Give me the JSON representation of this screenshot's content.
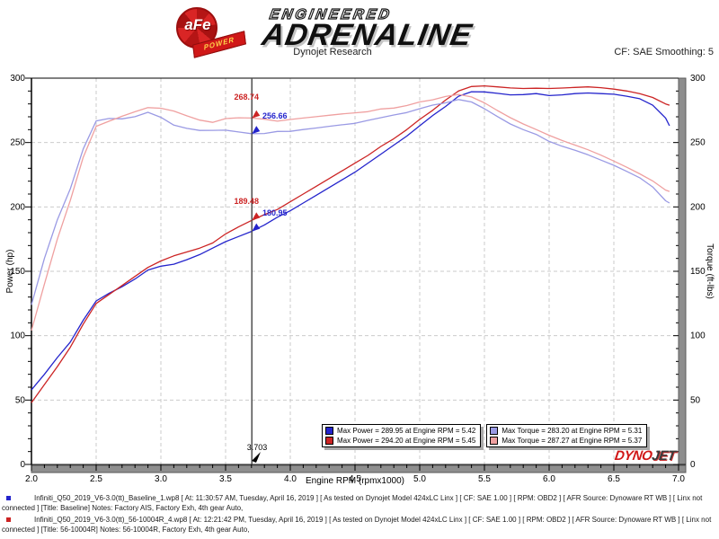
{
  "header": {
    "logo_afe": "aFe",
    "logo_power": "POWER",
    "wordmark_top": "ENGINEERED",
    "wordmark_main": "ADRENALINE",
    "subtitle": "Dynojet Research",
    "smoothing": "CF: SAE Smoothing: 5"
  },
  "chart_data": {
    "type": "line",
    "xlabel": "Engine RPM (rpmx1000)",
    "ylabel_left": "Power (hp)",
    "ylabel_right": "Torque (ft-lbs)",
    "xlim": [
      2.0,
      7.0
    ],
    "ylim": [
      0,
      300
    ],
    "x_ticks": [
      "2.0",
      "2.5",
      "3.0",
      "3.5",
      "4.0",
      "4.5",
      "5.0",
      "5.5",
      "6.0",
      "6.5",
      "7.0"
    ],
    "y_ticks": [
      "0",
      "50",
      "100",
      "150",
      "200",
      "250",
      "300"
    ],
    "grid": true,
    "x": [
      2.0,
      2.1,
      2.2,
      2.3,
      2.4,
      2.5,
      2.6,
      2.7,
      2.8,
      2.9,
      3.0,
      3.1,
      3.2,
      3.3,
      3.4,
      3.5,
      3.6,
      3.7,
      3.8,
      3.9,
      4.0,
      4.1,
      4.2,
      4.3,
      4.4,
      4.5,
      4.6,
      4.7,
      4.8,
      4.9,
      5.0,
      5.1,
      5.2,
      5.3,
      5.4,
      5.5,
      5.6,
      5.7,
      5.8,
      5.9,
      6.0,
      6.1,
      6.2,
      6.3,
      6.4,
      6.5,
      6.6,
      6.7,
      6.8,
      6.9,
      6.93
    ],
    "series": [
      {
        "name": "Baseline Power (hp)",
        "color": "#2424cc",
        "values": [
          58,
          70,
          83,
          95,
          112,
          127,
          133,
          138,
          144,
          151,
          154,
          155.5,
          159,
          163,
          168,
          173,
          177,
          181,
          186,
          192,
          197,
          203,
          209,
          215,
          221,
          227,
          234,
          241,
          248,
          255,
          263,
          271,
          278,
          286,
          289.5,
          289.3,
          288.2,
          287,
          287.2,
          288,
          286.5,
          287,
          288,
          288.5,
          288,
          287.5,
          286,
          284,
          279,
          269,
          263
        ]
      },
      {
        "name": "56-10004R Power (hp)",
        "color": "#cc2424",
        "values": [
          48,
          62,
          76,
          91,
          109,
          125,
          132,
          139,
          146,
          153,
          158,
          162,
          165,
          168,
          172,
          179,
          184.5,
          189.5,
          194,
          198,
          204,
          210,
          216,
          222,
          228,
          234,
          240,
          247,
          253,
          260,
          268,
          275,
          283,
          290,
          293.5,
          294,
          293.2,
          292.4,
          292,
          292.2,
          292,
          292.3,
          292.8,
          293.2,
          292.6,
          291.5,
          290,
          288,
          285,
          280,
          279
        ]
      },
      {
        "name": "Baseline Torque (ft-lbs)",
        "color": "#9a9ae4",
        "values": [
          124,
          160,
          190,
          214,
          245,
          266.8,
          268.7,
          268.4,
          270.1,
          273.5,
          269.6,
          263.5,
          261,
          259.4,
          259.5,
          259.6,
          258.2,
          256.9,
          257,
          258.6,
          258.7,
          260.1,
          261.3,
          262.6,
          263.8,
          264.9,
          267.2,
          269.3,
          271.4,
          273.3,
          276.3,
          279.1,
          280.8,
          283.4,
          281.5,
          276.3,
          270.2,
          264.4,
          260,
          256.3,
          250.9,
          247.1,
          244,
          240.5,
          236.4,
          232.3,
          227.6,
          222.6,
          215.5,
          204.8,
          203
        ]
      },
      {
        "name": "56-10004R Torque (ft-lbs)",
        "color": "#efa0a0",
        "values": [
          104,
          140,
          175,
          205,
          238.5,
          262.6,
          266.6,
          270.4,
          273.9,
          277.1,
          276.6,
          274.5,
          270.8,
          267.4,
          265.7,
          268.6,
          269.2,
          269,
          268.1,
          266.6,
          267.9,
          269,
          270.1,
          271.2,
          272.2,
          273.1,
          274,
          276.1,
          276.8,
          278.7,
          281.5,
          283.2,
          285.8,
          287.4,
          285.4,
          280.8,
          274.9,
          269.3,
          264.4,
          260.1,
          255.6,
          251.6,
          248,
          244.4,
          240.2,
          235.6,
          230.8,
          225.7,
          220.2,
          213.1,
          212
        ]
      }
    ],
    "cursor": {
      "rpm": 3.703,
      "rpm_label": "3.703",
      "readouts": [
        {
          "value": "268.74",
          "y_value": 268.74,
          "color": "#cc2424"
        },
        {
          "value": "256.66",
          "y_value": 256.66,
          "color": "#2424cc"
        },
        {
          "value": "189.48",
          "y_value": 189.48,
          "color": "#cc2424"
        },
        {
          "value": "180.95",
          "y_value": 180.95,
          "color": "#2424cc"
        }
      ]
    }
  },
  "legend": {
    "boxes": [
      {
        "rows": [
          {
            "color": "#2424cc",
            "label": "Max Power = 289.95 at Engine RPM = 5.42"
          },
          {
            "color": "#cc2424",
            "label": "Max Power = 294.20 at Engine RPM = 5.45"
          }
        ]
      },
      {
        "rows": [
          {
            "color": "#9a9ae4",
            "label": "Max Torque = 283.20 at Engine RPM = 5.31"
          },
          {
            "color": "#efa0a0",
            "label": "Max Torque = 287.27 at Engine RPM = 5.37"
          }
        ]
      }
    ]
  },
  "watermark": {
    "dyno": "DYNO",
    "jet": "JET"
  },
  "footer": {
    "runs": [
      {
        "bullet_color": "#2424cc",
        "text": "Infiniti_Q50_2019_V6-3.0(tt)_Baseline_1.wp8 [ At: 11:30:57 AM, Tuesday, April 16, 2019 ] [ As tested on Dynojet Model 424xLC Linx ] [ CF: SAE 1.00 ] [ RPM: OBD2 ] [ AFR Source: Dynoware RT WB ] [ Linx not connected ] [Title: Baseline]  Notes: Factory AIS, Factory Exh, 4th gear Auto,"
      },
      {
        "bullet_color": "#cc2424",
        "text": "Infiniti_Q50_2019_V6-3.0(tt)_56-10004R_4.wp8 [ At: 12:21:42 PM, Tuesday, April 16, 2019 ] [ As tested on Dynojet Model 424xLC Linx ] [ CF: SAE 1.00 ] [ RPM: OBD2 ] [ AFR Source: Dynoware RT WB ] [ Linx not connected ] [Title: 56-10004R]  Notes: 56-10004R, Factory Exh, 4th gear Auto,"
      }
    ]
  }
}
